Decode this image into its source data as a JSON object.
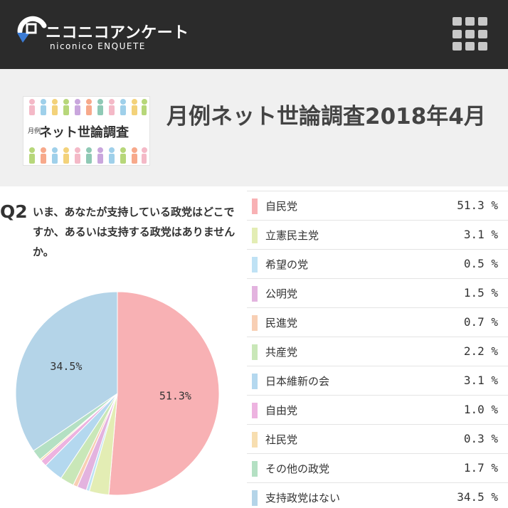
{
  "header": {
    "logo_ja": "ニコニコアンケート",
    "logo_en": "niconico ENQUETE"
  },
  "banner": {
    "small": "月例",
    "main": "ネット世論調査"
  },
  "title": "月例ネット世論調査2018年4月",
  "question": {
    "label": "Q2",
    "text": "いま、あなたが支持している政党はどこですか、あるいは支持する政党はありませんか。"
  },
  "chart_data": {
    "type": "pie",
    "title": "いま、あなたが支持している政党はどこですか、あるいは支持する政党はありませんか。",
    "categories": [
      "自民党",
      "立憲民主党",
      "希望の党",
      "公明党",
      "民進党",
      "共産党",
      "日本維新の会",
      "自由党",
      "社民党",
      "その他の政党",
      "支持政党はない"
    ],
    "values": [
      51.3,
      3.1,
      0.5,
      1.5,
      0.7,
      2.2,
      3.1,
      1.0,
      0.3,
      1.7,
      34.5
    ],
    "value_labels": [
      "51.3 %",
      "3.1 %",
      "0.5 %",
      "1.5 %",
      "0.7 %",
      "2.2 %",
      "3.1 %",
      "1.0 %",
      "0.3 %",
      "1.7 %",
      "34.5 %"
    ],
    "slice_labels": [
      {
        "index": 0,
        "text": "51.3%"
      },
      {
        "index": 10,
        "text": "34.5%"
      }
    ],
    "colors": [
      "#f8b1b4",
      "#e3edb4",
      "#bfe2f5",
      "#e3b3df",
      "#f8cfb4",
      "#c9e7b8",
      "#b4d8ef",
      "#edb3e0",
      "#f7deb0",
      "#b4e0c3",
      "#b4d4e8"
    ],
    "unit": "%"
  }
}
